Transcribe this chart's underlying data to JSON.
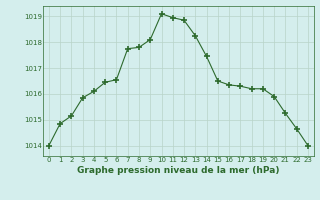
{
  "x": [
    0,
    1,
    2,
    3,
    4,
    5,
    6,
    7,
    8,
    9,
    10,
    11,
    12,
    13,
    14,
    15,
    16,
    17,
    18,
    19,
    20,
    21,
    22,
    23
  ],
  "y": [
    1014.0,
    1014.85,
    1015.15,
    1015.85,
    1016.1,
    1016.45,
    1016.55,
    1017.75,
    1017.8,
    1018.1,
    1019.1,
    1018.95,
    1018.85,
    1018.25,
    1017.45,
    1016.5,
    1016.35,
    1016.3,
    1016.2,
    1016.2,
    1015.9,
    1015.25,
    1014.65,
    1014.0
  ],
  "line_color": "#2d6a2d",
  "marker": "+",
  "marker_color": "#2d6a2d",
  "marker_size": 4,
  "bg_color": "#d4eeed",
  "grid_color": "#b8d4c8",
  "xlabel": "Graphe pression niveau de la mer (hPa)",
  "xlabel_color": "#2d6a2d",
  "ylim": [
    1013.6,
    1019.4
  ],
  "yticks": [
    1014,
    1015,
    1016,
    1017,
    1018,
    1019
  ],
  "xticks": [
    0,
    1,
    2,
    3,
    4,
    5,
    6,
    7,
    8,
    9,
    10,
    11,
    12,
    13,
    14,
    15,
    16,
    17,
    18,
    19,
    20,
    21,
    22,
    23
  ],
  "tick_color": "#2d6a2d",
  "tick_fontsize": 5.0,
  "xlabel_fontsize": 6.5,
  "line_width": 0.8,
  "marker_linewidth": 1.2
}
